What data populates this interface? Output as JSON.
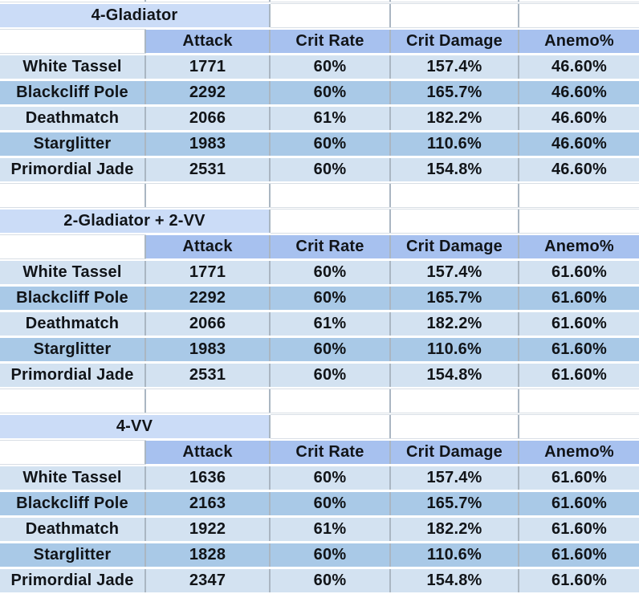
{
  "columns": [
    "Attack",
    "Crit Rate",
    "Crit Damage",
    "Anemo%"
  ],
  "tables": [
    {
      "title": "4-Gladiator",
      "rows": [
        {
          "label": "White Tassel",
          "values": [
            "1771",
            "60%",
            "157.4%",
            "46.60%"
          ]
        },
        {
          "label": "Blackcliff Pole",
          "values": [
            "2292",
            "60%",
            "165.7%",
            "46.60%"
          ]
        },
        {
          "label": "Deathmatch",
          "values": [
            "2066",
            "61%",
            "182.2%",
            "46.60%"
          ]
        },
        {
          "label": "Starglitter",
          "values": [
            "1983",
            "60%",
            "110.6%",
            "46.60%"
          ]
        },
        {
          "label": "Primordial Jade",
          "values": [
            "2531",
            "60%",
            "154.8%",
            "46.60%"
          ]
        }
      ]
    },
    {
      "title": "2-Gladiator + 2-VV",
      "rows": [
        {
          "label": "White Tassel",
          "values": [
            "1771",
            "60%",
            "157.4%",
            "61.60%"
          ]
        },
        {
          "label": "Blackcliff Pole",
          "values": [
            "2292",
            "60%",
            "165.7%",
            "61.60%"
          ]
        },
        {
          "label": "Deathmatch",
          "values": [
            "2066",
            "61%",
            "182.2%",
            "61.60%"
          ]
        },
        {
          "label": "Starglitter",
          "values": [
            "1983",
            "60%",
            "110.6%",
            "61.60%"
          ]
        },
        {
          "label": "Primordial Jade",
          "values": [
            "2531",
            "60%",
            "154.8%",
            "61.60%"
          ]
        }
      ]
    },
    {
      "title": "4-VV",
      "rows": [
        {
          "label": "White Tassel",
          "values": [
            "1636",
            "60%",
            "157.4%",
            "61.60%"
          ]
        },
        {
          "label": "Blackcliff Pole",
          "values": [
            "2163",
            "60%",
            "165.7%",
            "61.60%"
          ]
        },
        {
          "label": "Deathmatch",
          "values": [
            "1922",
            "61%",
            "182.2%",
            "61.60%"
          ]
        },
        {
          "label": "Starglitter",
          "values": [
            "1828",
            "60%",
            "110.6%",
            "61.60%"
          ]
        },
        {
          "label": "Primordial Jade",
          "values": [
            "2347",
            "60%",
            "154.8%",
            "61.60%"
          ]
        }
      ]
    }
  ],
  "colors": {
    "section_title_bg": "#cbdcf7",
    "column_header_bg": "#a7c1ef",
    "row_light_bg": "#d3e2f1",
    "row_dark_bg": "#a9c9e7",
    "gridline_vertical": "#aab6c2",
    "gridline_light": "#d8dee5",
    "text": "#111418"
  }
}
